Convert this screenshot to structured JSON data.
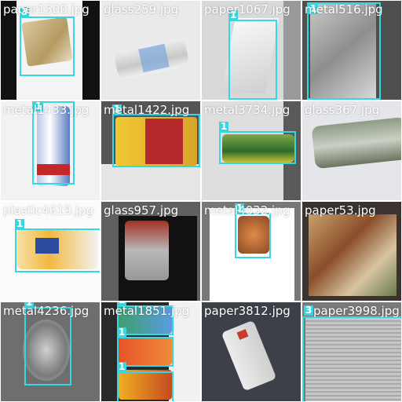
{
  "colors": {
    "box": "#36d7e0",
    "label_text": "#ffffff"
  },
  "tiles": [
    {
      "filename": "paper1500.jpg",
      "boxes": [
        {
          "class_id": "3"
        }
      ]
    },
    {
      "filename": "glass259.jpg",
      "boxes": []
    },
    {
      "filename": "paper1067.jpg",
      "boxes": [
        {
          "class_id": "1"
        }
      ]
    },
    {
      "filename": "metal516.jpg",
      "boxes": [
        {
          "class_id": "1"
        }
      ]
    },
    {
      "filename": "metal1433.jpg",
      "boxes": [
        {
          "class_id": "1"
        }
      ]
    },
    {
      "filename": "metal1422.jpg",
      "boxes": [
        {
          "class_id": "1"
        }
      ]
    },
    {
      "filename": "metal3734.jpg",
      "boxes": [
        {
          "class_id": "1"
        }
      ]
    },
    {
      "filename": "glass367.jpg",
      "boxes": []
    },
    {
      "filename": "plastic4619.jpg",
      "boxes": [
        {
          "class_id": "1"
        }
      ]
    },
    {
      "filename": "glass957.jpg",
      "boxes": []
    },
    {
      "filename": "metal4032.jpg",
      "boxes": [
        {
          "class_id": "1"
        }
      ]
    },
    {
      "filename": "paper53.jpg",
      "boxes": []
    },
    {
      "filename": "metal4236.jpg",
      "boxes": [
        {
          "class_id": "1"
        }
      ]
    },
    {
      "filename": "metal1851.jpg",
      "boxes": [
        {
          "class_id": "1"
        },
        {
          "class_id": "1"
        },
        {
          "class_id": "1"
        }
      ]
    },
    {
      "filename": "paper3812.jpg",
      "boxes": []
    },
    {
      "filename": "paper3998.jpg",
      "boxes": [
        {
          "class_id": "3"
        }
      ]
    }
  ]
}
